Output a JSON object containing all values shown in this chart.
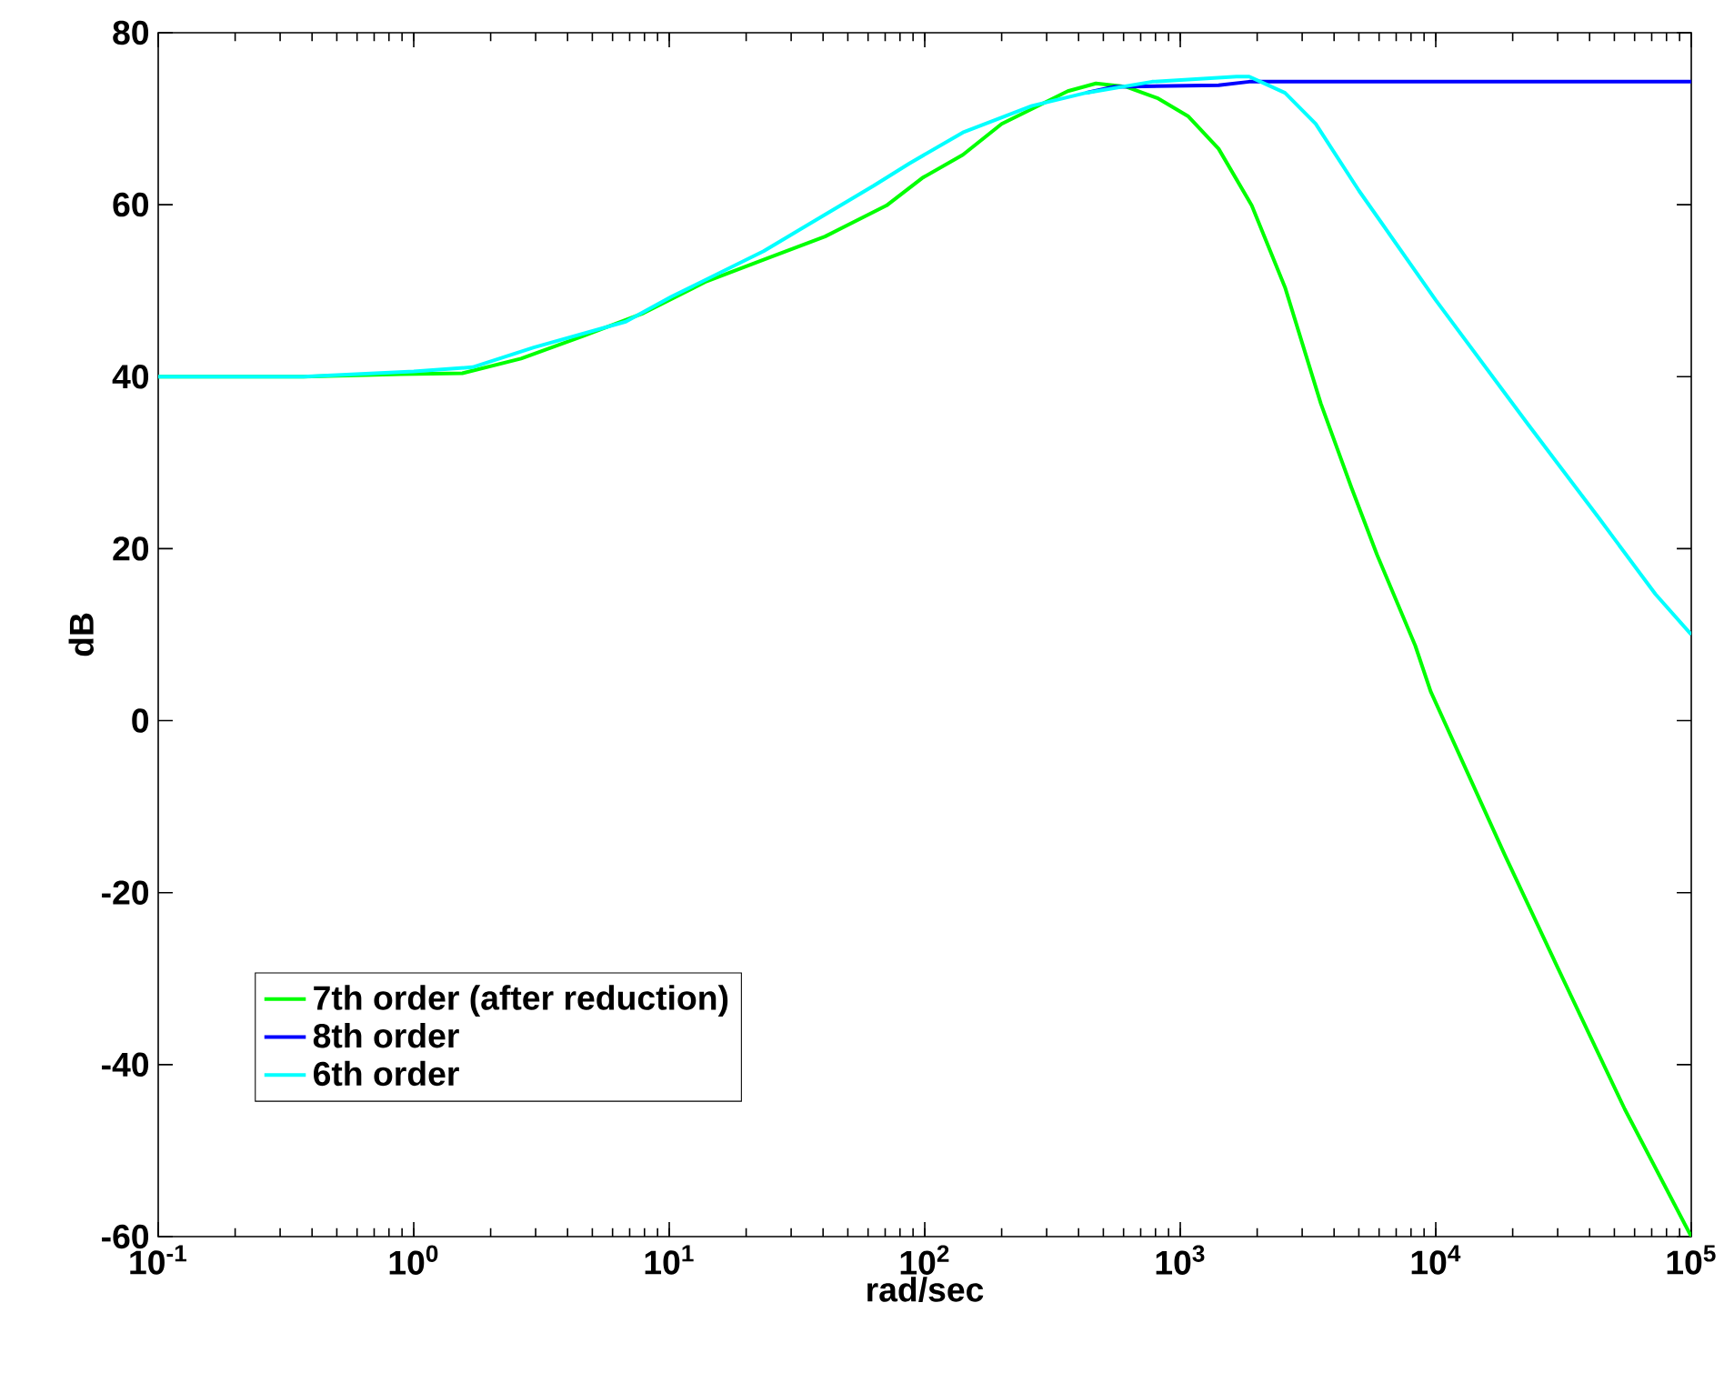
{
  "chart_data": {
    "type": "line",
    "xlabel": "rad/sec",
    "ylabel": "dB",
    "log": "x",
    "xlim": [
      0.1,
      100000
    ],
    "ylim": [
      -60,
      80
    ],
    "xticks": [
      {
        "value": 0.1,
        "label": "10$^{-1}$"
      },
      {
        "value": 1,
        "label": "10$^{0}$"
      },
      {
        "value": 10,
        "label": "10$^{1}$"
      },
      {
        "value": 100,
        "label": "10$^{2}$"
      },
      {
        "value": 1000,
        "label": "10$^{3}$"
      },
      {
        "value": 10000,
        "label": "10$^{4}$"
      },
      {
        "value": 100000,
        "label": "10$^{5}$"
      }
    ],
    "yticks": [
      -60,
      -40,
      -20,
      0,
      20,
      40,
      60,
      80
    ],
    "grid": false,
    "legend": "bottom left",
    "line_style": "solid",
    "marker": "none",
    "series": [
      {
        "name": "7th order (after reduction)",
        "color": "#00ff00",
        "x": [
          0.1,
          0.37,
          0.89,
          1.55,
          2.63,
          4.57,
          7.94,
          13.8,
          23.4,
          40.7,
          70.8,
          97.7,
          141,
          200,
          363,
          468,
          617,
          813,
          1072,
          1413,
          1905,
          2570,
          3548,
          4677,
          5888,
          8318,
          9550,
          18621,
          30200,
          54954,
          100000
        ],
        "values": [
          40,
          40,
          40.3,
          40.4,
          42.1,
          44.7,
          47.4,
          51.0,
          53.6,
          56.3,
          59.9,
          63.1,
          65.8,
          69.4,
          73.2,
          74.1,
          73.7,
          72.4,
          70.3,
          66.5,
          59.9,
          50.4,
          36.9,
          27.1,
          19.3,
          8.7,
          3.4,
          -15.6,
          -28.9,
          -45.2,
          -60
        ]
      },
      {
        "name": "8th order",
        "color": "#0000ff",
        "x": [
          427,
          550,
          1413,
          1862,
          100000
        ],
        "values": [
          73.0,
          73.7,
          73.9,
          74.3,
          74.3
        ]
      },
      {
        "name": "6th order",
        "color": "#00ffff",
        "x": [
          0.1,
          0.37,
          1,
          1.7,
          2.95,
          6.76,
          10.2,
          23.4,
          63.1,
          87.1,
          141,
          263,
          427,
          776,
          1660,
          1862,
          2570,
          3388,
          5012,
          10000,
          22909,
          43652,
          72444,
          100000
        ],
        "values": [
          40,
          40,
          40.6,
          41.1,
          43.4,
          46.4,
          49.3,
          54.6,
          62.2,
          64.8,
          68.4,
          71.5,
          73.0,
          74.3,
          74.9,
          74.9,
          73.0,
          69.4,
          61.6,
          48.9,
          34.5,
          23.5,
          14.7,
          10
        ]
      }
    ]
  }
}
